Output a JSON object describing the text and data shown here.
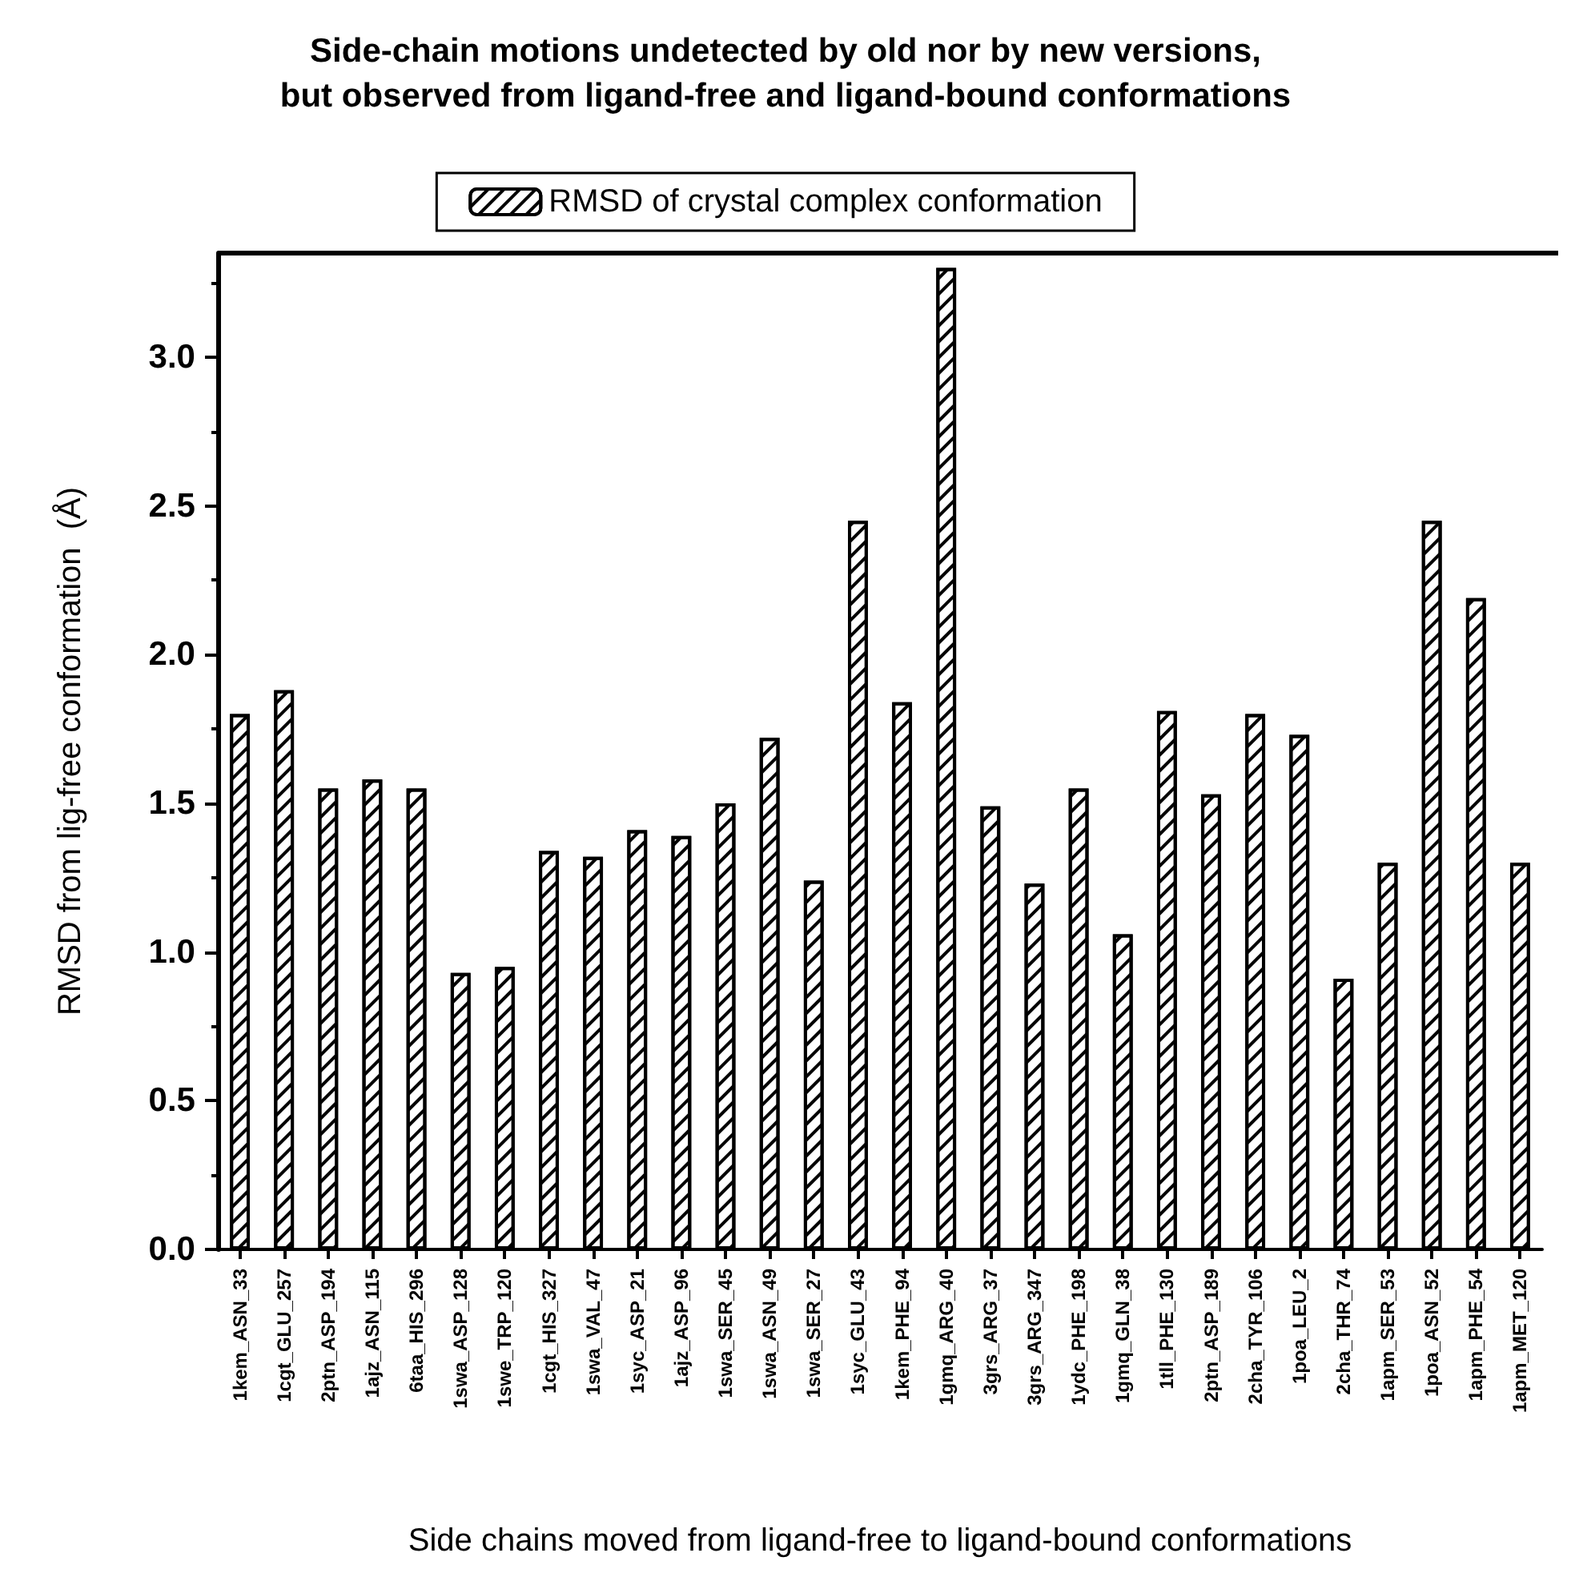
{
  "chart_data": {
    "type": "bar",
    "title": "Side-chain motions undetected by old nor by new versions,\nbut observed from ligand-free and ligand-bound conformations",
    "xlabel": "Side chains moved from ligand-free to ligand-bound conformations",
    "ylabel": "RMSD from lig-free conformation  (Å)",
    "categories": [
      "1kem_ASN_33",
      "1cgt_GLU_257",
      "2ptn_ASP_194",
      "1ajz_ASN_115",
      "6taa_HIS_296",
      "1swa_ASP_128",
      "1swe_TRP_120",
      "1cgt_HIS_327",
      "1swa_VAL_47",
      "1syc_ASP_21",
      "1ajz_ASP_96",
      "1swa_SER_45",
      "1swa_ASN_49",
      "1swa_SER_27",
      "1syc_GLU_43",
      "1kem_PHE_94",
      "1gmq_ARG_40",
      "3grs_ARG_37",
      "3grs_ARG_347",
      "1ydc_PHE_198",
      "1gmq_GLN_38",
      "1tll_PHE_130",
      "2ptn_ASP_189",
      "2cha_TYR_106",
      "1poa_LEU_2",
      "2cha_THR_74",
      "1apm_SER_53",
      "1poa_ASN_52",
      "1apm_PHE_54",
      "1apm_MET_120"
    ],
    "series": [
      {
        "name": "RMSD of crystal complex conformation",
        "color": "#ffffff",
        "values": [
          1.8,
          1.88,
          1.55,
          1.58,
          1.55,
          0.93,
          0.95,
          1.34,
          1.32,
          1.41,
          1.39,
          1.5,
          1.72,
          1.24,
          2.45,
          1.84,
          3.3,
          1.49,
          1.23,
          1.55,
          1.06,
          1.81,
          1.53,
          1.8,
          1.73,
          0.91,
          1.3,
          2.45,
          2.19,
          1.3
        ]
      }
    ],
    "ylim": [
      0,
      3.35
    ],
    "yticks": [
      {
        "value": 0,
        "label": "0.0"
      },
      0.5,
      {
        "value": 1,
        "label": "1.0"
      },
      1.5,
      {
        "value": 2,
        "label": "2.0"
      },
      2.5,
      {
        "value": 3,
        "label": "3.0"
      }
    ],
    "grid": false,
    "legend": "top"
  }
}
